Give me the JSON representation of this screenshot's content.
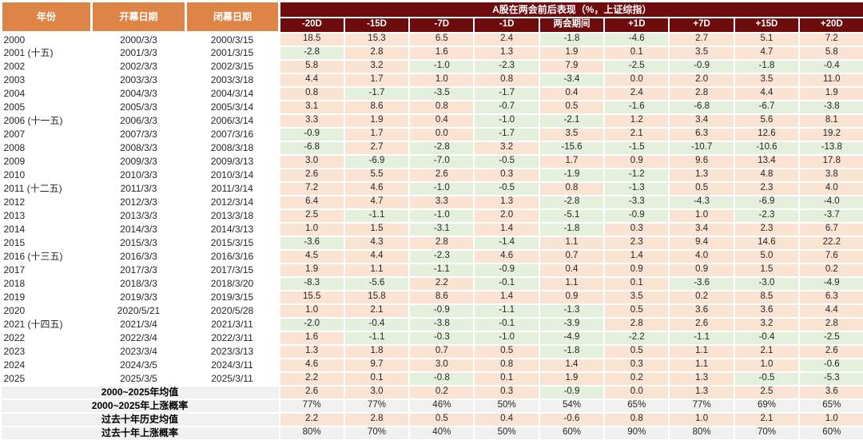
{
  "chart_data": {
    "type": "table",
    "title": "A股在两会前后表现（%，上证综指）",
    "left_columns": [
      "年份",
      "开幕日期",
      "闭幕日期"
    ],
    "period_columns": [
      "-20D",
      "-15D",
      "-7D",
      "-1D",
      "两会期间",
      "+1D",
      "+7D",
      "+15D",
      "+20D"
    ],
    "color_rule": "value cells: negative = light green, zero or positive = light peach; probability rows = light gray",
    "colors": {
      "header_orange": "#DC8546",
      "header_maroon": "#6E0B0C",
      "positive_bg": "#FBE3D4",
      "negative_bg": "#E4F0DC",
      "probability_bg": "#F0F0F0"
    },
    "rows": [
      {
        "year": "2000",
        "open": "2000/3/3",
        "close": "2000/3/15",
        "values": [
          "18.5",
          "15.3",
          "6.5",
          "2.4",
          "-1.8",
          "-4.6",
          "2.7",
          "5.1",
          "7.2"
        ]
      },
      {
        "year": "2001 (十五)",
        "open": "2001/3/3",
        "close": "2001/3/15",
        "values": [
          "-2.8",
          "2.8",
          "1.6",
          "1.3",
          "1.9",
          "0.1",
          "3.5",
          "4.7",
          "5.8"
        ]
      },
      {
        "year": "2002",
        "open": "2002/3/3",
        "close": "2002/3/15",
        "values": [
          "5.8",
          "3.2",
          "-1.0",
          "-2.3",
          "7.9",
          "-2.5",
          "-0.9",
          "-1.8",
          "-0.4"
        ]
      },
      {
        "year": "2003",
        "open": "2003/3/3",
        "close": "2003/3/18",
        "values": [
          "4.4",
          "1.7",
          "1.0",
          "0.8",
          "-3.4",
          "0.0",
          "2.0",
          "3.5",
          "11.0"
        ]
      },
      {
        "year": "2004",
        "open": "2004/3/3",
        "close": "2004/3/14",
        "values": [
          "0.8",
          "-1.7",
          "-3.5",
          "-1.7",
          "0.4",
          "2.4",
          "2.8",
          "4.4",
          "1.9"
        ]
      },
      {
        "year": "2005",
        "open": "2005/3/3",
        "close": "2005/3/14",
        "values": [
          "3.1",
          "8.6",
          "0.8",
          "-0.7",
          "0.5",
          "-1.6",
          "-6.8",
          "-6.7",
          "-3.8"
        ]
      },
      {
        "year": "2006 (十一五)",
        "open": "2006/3/3",
        "close": "2006/3/14",
        "values": [
          "3.3",
          "1.9",
          "0.4",
          "-1.0",
          "-2.1",
          "1.2",
          "3.4",
          "5.6",
          "8.1"
        ]
      },
      {
        "year": "2007",
        "open": "2007/3/3",
        "close": "2007/3/16",
        "values": [
          "-0.9",
          "1.7",
          "0.0",
          "-1.7",
          "3.5",
          "2.1",
          "6.3",
          "12.6",
          "19.2"
        ]
      },
      {
        "year": "2008",
        "open": "2008/3/3",
        "close": "2008/3/18",
        "values": [
          "-6.8",
          "2.7",
          "-2.8",
          "3.2",
          "-15.6",
          "-1.5",
          "-10.7",
          "-10.6",
          "-13.8"
        ]
      },
      {
        "year": "2009",
        "open": "2009/3/3",
        "close": "2009/3/13",
        "values": [
          "3.0",
          "-6.9",
          "-7.0",
          "-0.5",
          "1.7",
          "0.9",
          "9.6",
          "13.4",
          "17.8"
        ]
      },
      {
        "year": "2010",
        "open": "2010/3/3",
        "close": "2010/3/14",
        "values": [
          "2.6",
          "5.5",
          "2.6",
          "0.3",
          "-1.9",
          "-1.2",
          "1.3",
          "4.8",
          "3.8"
        ]
      },
      {
        "year": "2011 (十二五)",
        "open": "2011/3/3",
        "close": "2011/3/14",
        "values": [
          "7.2",
          "4.6",
          "-1.0",
          "-0.5",
          "0.8",
          "-1.3",
          "0.5",
          "2.3",
          "4.0"
        ]
      },
      {
        "year": "2012",
        "open": "2012/3/3",
        "close": "2012/3/14",
        "values": [
          "6.4",
          "4.7",
          "3.3",
          "1.3",
          "-2.8",
          "-3.3",
          "-4.3",
          "-6.9",
          "-4.0"
        ]
      },
      {
        "year": "2013",
        "open": "2013/3/3",
        "close": "2013/3/18",
        "values": [
          "2.5",
          "-1.1",
          "-1.0",
          "2.0",
          "-5.1",
          "-0.9",
          "1.0",
          "-2.3",
          "-3.7"
        ]
      },
      {
        "year": "2014",
        "open": "2014/3/3",
        "close": "2014/3/13",
        "values": [
          "1.0",
          "1.5",
          "-3.1",
          "1.4",
          "-1.8",
          "0.3",
          "3.4",
          "2.3",
          "6.7"
        ]
      },
      {
        "year": "2015",
        "open": "2015/3/3",
        "close": "2015/3/15",
        "values": [
          "-3.6",
          "4.3",
          "2.8",
          "-1.4",
          "1.1",
          "2.3",
          "9.4",
          "14.6",
          "22.2"
        ]
      },
      {
        "year": "2016 (十三五)",
        "open": "2016/3/3",
        "close": "2016/3/16",
        "values": [
          "4.5",
          "4.4",
          "-2.3",
          "4.6",
          "0.7",
          "1.4",
          "4.0",
          "5.0",
          "7.6"
        ]
      },
      {
        "year": "2017",
        "open": "2017/3/3",
        "close": "2017/3/15",
        "values": [
          "1.9",
          "1.1",
          "-1.1",
          "-0.9",
          "0.4",
          "0.9",
          "0.9",
          "1.5",
          "0.2"
        ]
      },
      {
        "year": "2018",
        "open": "2018/3/3",
        "close": "2018/3/20",
        "values": [
          "-8.3",
          "-5.6",
          "2.2",
          "-0.1",
          "1.1",
          "0.1",
          "-3.6",
          "-3.0",
          "-4.9"
        ]
      },
      {
        "year": "2019",
        "open": "2019/3/3",
        "close": "2019/3/15",
        "values": [
          "15.5",
          "15.8",
          "8.6",
          "1.4",
          "0.9",
          "3.5",
          "0.2",
          "8.5",
          "6.3"
        ]
      },
      {
        "year": "2020",
        "open": "2020/5/21",
        "close": "2020/5/28",
        "values": [
          "1.0",
          "2.1",
          "-0.9",
          "-1.1",
          "-1.3",
          "0.5",
          "3.6",
          "3.6",
          "4.4"
        ]
      },
      {
        "year": "2021 (十四五)",
        "open": "2021/3/4",
        "close": "2021/3/11",
        "values": [
          "-2.0",
          "-0.4",
          "-3.8",
          "-0.1",
          "-3.9",
          "2.8",
          "2.6",
          "3.2",
          "2.8"
        ]
      },
      {
        "year": "2022",
        "open": "2022/3/4",
        "close": "2022/3/11",
        "values": [
          "1.6",
          "-1.1",
          "-0.3",
          "-1.0",
          "-4.9",
          "-2.2",
          "-1.1",
          "-0.4",
          "-2.5"
        ]
      },
      {
        "year": "2023",
        "open": "2023/3/4",
        "close": "2023/3/13",
        "values": [
          "1.3",
          "1.8",
          "0.7",
          "0.5",
          "-1.8",
          "0.5",
          "1.1",
          "2.1",
          "2.6"
        ]
      },
      {
        "year": "2024",
        "open": "2024/3/5",
        "close": "2024/3/11",
        "values": [
          "4.6",
          "9.7",
          "3.0",
          "0.8",
          "1.4",
          "0.3",
          "1.1",
          "1.0",
          "-0.6"
        ]
      },
      {
        "year": "2025",
        "open": "2025/3/5",
        "close": "2025/3/11",
        "values": [
          "2.2",
          "0.1",
          "-0.8",
          "0.1",
          "1.9",
          "0.2",
          "1.3",
          "-0.5",
          "-5.3"
        ]
      }
    ],
    "summary_rows": [
      {
        "label": "2000~2025年均值",
        "kind": "mean",
        "values": [
          "2.6",
          "3.0",
          "0.2",
          "0.3",
          "-0.9",
          "0.0",
          "1.3",
          "2.5",
          "3.6"
        ]
      },
      {
        "label": "2000~2025年上涨概率",
        "kind": "prob",
        "values": [
          "77%",
          "77%",
          "46%",
          "50%",
          "54%",
          "65%",
          "77%",
          "69%",
          "65%"
        ]
      },
      {
        "label": "过去十年历史均值",
        "kind": "mean-allpink",
        "values": [
          "2.2",
          "2.8",
          "0.5",
          "0.4",
          "-0.6",
          "0.8",
          "1.0",
          "2.1",
          "1.0"
        ]
      },
      {
        "label": "过去十年上涨概率",
        "kind": "prob",
        "values": [
          "80%",
          "70%",
          "40%",
          "50%",
          "60%",
          "90%",
          "80%",
          "70%",
          "60%"
        ]
      }
    ]
  }
}
